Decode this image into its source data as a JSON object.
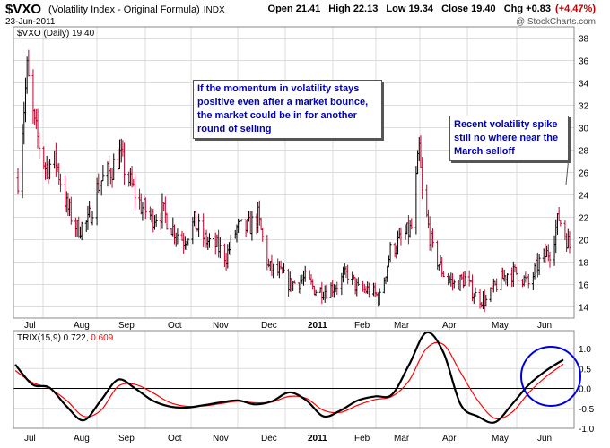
{
  "header": {
    "ticker": "$VXO",
    "subtitle": "(Volatility Index - Original Formula)",
    "exchange": "INDX",
    "date": "23-Jun-2011",
    "watermark": "@ StockCharts.com",
    "open_label": "Open",
    "open": "21.41",
    "high_label": "High",
    "high": "22.13",
    "low_label": "Low",
    "low": "19.34",
    "close_label": "Close",
    "close": "19.40",
    "chg_label": "Chg",
    "chg": "+0.83",
    "chg_pct": "(+4.47%)"
  },
  "colors": {
    "up_bar": "#000000",
    "down_bar": "#c0002a",
    "trix_line": "#000000",
    "signal_line": "#ff0000",
    "annotation_text": "#0000b4",
    "highlight_circle": "#0000dd",
    "grid": "#dcdcdc"
  },
  "annotations": {
    "momentum_note": "If the momentum in volatility stays positive even after a market bounce, the market could be in for another round of selling",
    "spike_note": "Recent volatility spike still no where near the March selloff"
  },
  "chart_data": [
    {
      "type": "bar",
      "title": "$VXO (Daily) 19.40",
      "y_ticks": [
        14,
        16,
        18,
        20,
        22,
        24,
        26,
        28,
        30,
        32,
        34,
        36,
        38
      ],
      "ylim": [
        13,
        39
      ],
      "x_tick_labels": [
        "Jul",
        "Aug",
        "Sep",
        "Oct",
        "Nov",
        "Dec",
        "2011",
        "Feb",
        "Mar",
        "Apr",
        "May",
        "Jun"
      ],
      "grid": true,
      "anchor_points": [
        [
          "2010-06-25",
          25.5
        ],
        [
          "2010-07-01",
          35
        ],
        [
          "2010-07-06",
          30
        ],
        [
          "2010-07-13",
          26.5
        ],
        [
          "2010-07-20",
          27
        ],
        [
          "2010-07-27",
          23
        ],
        [
          "2010-08-03",
          21
        ],
        [
          "2010-08-10",
          21.5
        ],
        [
          "2010-08-17",
          25
        ],
        [
          "2010-08-24",
          26
        ],
        [
          "2010-08-31",
          27.5
        ],
        [
          "2010-09-07",
          25
        ],
        [
          "2010-09-14",
          23
        ],
        [
          "2010-09-21",
          22
        ],
        [
          "2010-09-28",
          22.5
        ],
        [
          "2010-10-05",
          21
        ],
        [
          "2010-10-12",
          20
        ],
        [
          "2010-10-19",
          21.5
        ],
        [
          "2010-10-26",
          20
        ],
        [
          "2010-11-02",
          19.5
        ],
        [
          "2010-11-09",
          18.5
        ],
        [
          "2010-11-16",
          21
        ],
        [
          "2010-11-23",
          21
        ],
        [
          "2010-11-30",
          22
        ],
        [
          "2010-12-07",
          17.5
        ],
        [
          "2010-12-14",
          17
        ],
        [
          "2010-12-21",
          16
        ],
        [
          "2010-12-31",
          16.5
        ],
        [
          "2011-01-07",
          15.5
        ],
        [
          "2011-01-14",
          15.5
        ],
        [
          "2011-01-21",
          16
        ],
        [
          "2011-01-28",
          17
        ],
        [
          "2011-02-04",
          15.5
        ],
        [
          "2011-02-11",
          15.5
        ],
        [
          "2011-02-18",
          14.8
        ],
        [
          "2011-02-25",
          19
        ],
        [
          "2011-03-04",
          20
        ],
        [
          "2011-03-11",
          21
        ],
        [
          "2011-03-16",
          28
        ],
        [
          "2011-03-18",
          24
        ],
        [
          "2011-03-25",
          19
        ],
        [
          "2011-04-01",
          17
        ],
        [
          "2011-04-08",
          16
        ],
        [
          "2011-04-15",
          16.5
        ],
        [
          "2011-04-22",
          15
        ],
        [
          "2011-04-29",
          14.5
        ],
        [
          "2011-05-06",
          16
        ],
        [
          "2011-05-13",
          17
        ],
        [
          "2011-05-20",
          17
        ],
        [
          "2011-05-27",
          16
        ],
        [
          "2011-06-03",
          18
        ],
        [
          "2011-06-10",
          19
        ],
        [
          "2011-06-16",
          22
        ],
        [
          "2011-06-23",
          19.4
        ]
      ]
    },
    {
      "type": "line",
      "title": "TRIX(15,9) 0.722, 0.609",
      "series": [
        {
          "name": "TRIX(15,9) 0.722",
          "values": [
            0.6,
            0.1,
            0.02,
            -0.45,
            -0.8,
            -0.3,
            0.22,
            0.0,
            -0.3,
            -0.45,
            -0.48,
            -0.42,
            -0.35,
            -0.3,
            -0.4,
            -0.32,
            -0.1,
            -0.3,
            -0.7,
            -0.55,
            -0.3,
            -0.2,
            -0.15,
            0.6,
            1.4,
            0.9,
            -0.4,
            -0.7,
            -0.85,
            -0.4,
            0.1,
            0.45,
            0.722
          ]
        },
        {
          "name": "0.609",
          "values": [
            0.45,
            0.15,
            0.0,
            -0.3,
            -0.7,
            -0.55,
            0.05,
            0.1,
            -0.1,
            -0.35,
            -0.45,
            -0.44,
            -0.38,
            -0.32,
            -0.36,
            -0.34,
            -0.2,
            -0.25,
            -0.55,
            -0.6,
            -0.42,
            -0.28,
            -0.2,
            0.2,
            1.0,
            1.1,
            0.4,
            -0.3,
            -0.75,
            -0.6,
            -0.1,
            0.3,
            0.609
          ]
        }
      ],
      "y_ticks": [
        -1.0,
        -0.5,
        0.0,
        0.5,
        1.0
      ],
      "ylim": [
        -1.0,
        1.45
      ],
      "x_tick_labels": [
        "Jul",
        "Aug",
        "Sep",
        "Oct",
        "Nov",
        "Dec",
        "2011",
        "Feb",
        "Mar",
        "Apr",
        "May",
        "Jun"
      ],
      "grid": true
    }
  ]
}
